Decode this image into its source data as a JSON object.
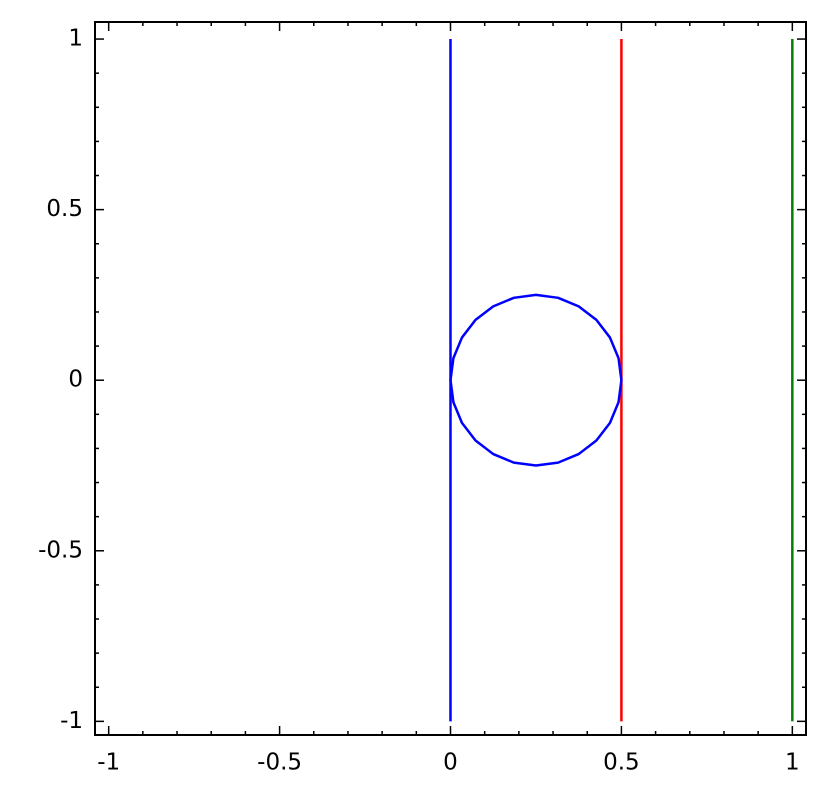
{
  "chart_data": {
    "type": "line",
    "xlim": [
      -1.04,
      1.04
    ],
    "ylim": [
      -1.04,
      1.05
    ],
    "xticks": [
      -1,
      -0.5,
      0,
      0.5,
      1
    ],
    "yticks": [
      -1,
      -0.5,
      0,
      0.5,
      1
    ],
    "minor_ticks": [
      -0.9,
      -0.8,
      -0.7,
      -0.6,
      -0.4,
      -0.3,
      -0.2,
      -0.1,
      0.1,
      0.2,
      0.3,
      0.4,
      0.6,
      0.7,
      0.8,
      0.9
    ],
    "series": [
      {
        "color": "#0000ff",
        "x": [
          0,
          0
        ],
        "y": [
          -1,
          1
        ]
      },
      {
        "color": "#ff0000",
        "x": [
          0.5,
          0.5
        ],
        "y": [
          -1,
          1
        ]
      },
      {
        "color": "#008000",
        "x": [
          1,
          1
        ],
        "y": [
          -1,
          1
        ]
      },
      {
        "color": "#0000ff",
        "x": [
          0.5,
          0.4915,
          0.4665,
          0.4268,
          0.375,
          0.3147,
          0.25,
          0.1853,
          0.125,
          0.0732,
          0.0335,
          0.0085,
          0,
          0.0085,
          0.0335,
          0.0732,
          0.125,
          0.1853,
          0.25,
          0.3147,
          0.375,
          0.4268,
          0.4665,
          0.4915,
          0.5
        ],
        "y": [
          0,
          0.0647,
          0.125,
          0.1768,
          0.2165,
          0.2415,
          0.25,
          0.2415,
          0.2165,
          0.1768,
          0.125,
          0.0647,
          0,
          -0.0647,
          -0.125,
          -0.1768,
          -0.2165,
          -0.2415,
          -0.25,
          -0.2415,
          -0.2165,
          -0.1768,
          -0.125,
          -0.0647,
          0
        ]
      }
    ]
  }
}
